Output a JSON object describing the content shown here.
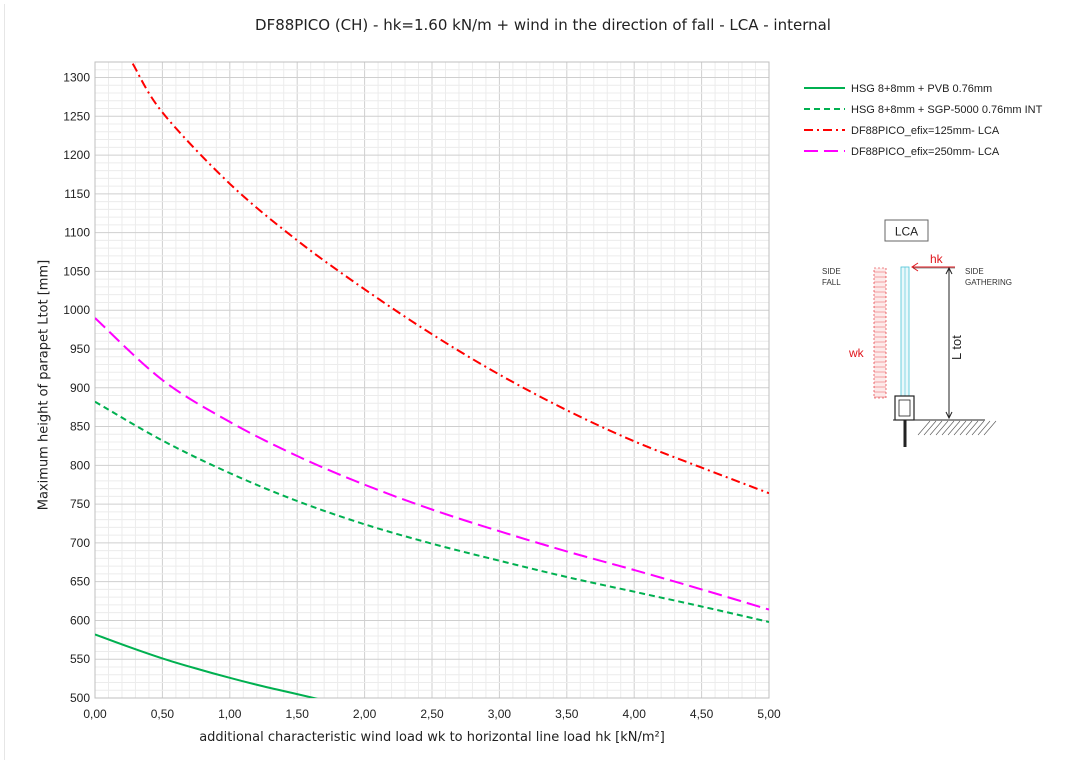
{
  "chart_data": {
    "type": "line",
    "title": "DF88PICO (CH) - hk=1.60 kN/m + wind in the direction of fall - LCA - internal",
    "xlabel": "additional characteristic wind load wk to horizontal line load hk [kN/m²]",
    "ylabel": "Maximum height of parapet Ltot [mm]",
    "xlim": [
      0,
      5
    ],
    "ylim": [
      500,
      1320
    ],
    "x_ticks": [
      "0,00",
      "0,50",
      "1,00",
      "1,50",
      "2,00",
      "2,50",
      "3,00",
      "3,50",
      "4,00",
      "4,50",
      "5,00"
    ],
    "y_ticks": [
      "500",
      "550",
      "600",
      "650",
      "700",
      "750",
      "800",
      "850",
      "900",
      "950",
      "1000",
      "1050",
      "1100",
      "1150",
      "1200",
      "1250",
      "1300"
    ],
    "grid": true,
    "legend_position": "top-right",
    "series": [
      {
        "name": "HSG 8+8mm + PVB 0.76mm",
        "color": "#00b050",
        "dash": "solid",
        "x": [
          0,
          0.25,
          0.5,
          0.75,
          1.0,
          1.25,
          1.5,
          1.65
        ],
        "y": [
          582,
          566,
          551,
          538,
          526,
          515,
          505,
          499
        ]
      },
      {
        "name": "HSG 8+8mm + SGP-5000 0.76mm INT",
        "color": "#00b050",
        "dash": "dashed",
        "x": [
          0,
          0.5,
          1.0,
          1.5,
          2.0,
          2.5,
          3.0,
          3.5,
          4.0,
          4.5,
          5.0
        ],
        "y": [
          882,
          832,
          790,
          754,
          724,
          699,
          677,
          656,
          637,
          618,
          598
        ]
      },
      {
        "name": "DF88PICO_efix=125mm- LCA",
        "color": "#ff0000",
        "dash": "dashdot",
        "x": [
          0.28,
          0.5,
          1.0,
          1.5,
          2.0,
          2.5,
          3.0,
          3.5,
          4.0,
          4.5,
          5.0
        ],
        "y": [
          1318,
          1255,
          1163,
          1090,
          1027,
          969,
          917,
          871,
          831,
          797,
          764
        ]
      },
      {
        "name": "DF88PICO_efix=250mm- LCA",
        "color": "#ff00ff",
        "dash": "longdash",
        "x": [
          0,
          0.5,
          1.0,
          1.5,
          2.0,
          2.5,
          3.0,
          3.5,
          4.0,
          4.5,
          5.0
        ],
        "y": [
          990,
          910,
          856,
          812,
          775,
          743,
          715,
          689,
          665,
          640,
          614
        ]
      }
    ]
  },
  "diagram": {
    "box_label": "LCA",
    "hk_label": "hk",
    "wk_label": "wk",
    "ltot_label": "L tot",
    "side_fall": [
      "SIDE",
      "FALL"
    ],
    "side_gathering": [
      "SIDE",
      "GATHERING"
    ],
    "color_load": "#e0161d"
  }
}
